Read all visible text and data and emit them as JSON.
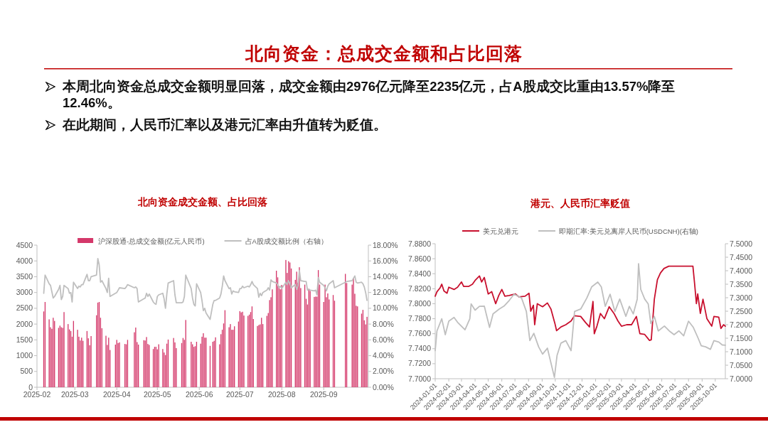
{
  "chart_data": [
    {
      "type": "other",
      "title": "北向资金：总成交金额和占比回落",
      "annotations": [
        "本周北向资金总成交金额明显回落，成交金额由2976亿元降至2235亿元，占A股成交比重由13.57%降至12.46%。",
        "在此期间，人民币汇率以及港元汇率由升值转为贬值。"
      ]
    },
    {
      "type": "bar",
      "title": "北向资金成交金额、占比回落",
      "legend": "top",
      "xlim": [
        "2025-02-01",
        "2025-10-04"
      ],
      "xticks": [
        "2025-02",
        "2025-03",
        "2025-04",
        "2025-05",
        "2025-06",
        "2025-07",
        "2025-08",
        "2025-09"
      ],
      "ylim": [
        0,
        4500
      ],
      "yticks": [
        0,
        500,
        1000,
        1500,
        2000,
        2500,
        3000,
        3500,
        4000,
        4500
      ],
      "y2lim": [
        0,
        18
      ],
      "y2ticks": [
        {
          "value": 0,
          "label": "0.00%"
        },
        {
          "value": 2,
          "label": "2.00%"
        },
        {
          "value": 4,
          "label": "4.00%"
        },
        {
          "value": 6,
          "label": "6.00%"
        },
        {
          "value": 8,
          "label": "8.00%"
        },
        {
          "value": 10,
          "label": "10.00%"
        },
        {
          "value": 12,
          "label": "12.00%"
        },
        {
          "value": 14,
          "label": "14.00%"
        },
        {
          "value": 16,
          "label": "16.00%"
        },
        {
          "value": 18,
          "label": "18.00%"
        }
      ],
      "series": [
        {
          "name": "沪深股通-总成交金额(亿元人民币)",
          "type": "bar",
          "color": "#d4386a",
          "x": [
            "2025-02-06",
            "2025-02-07",
            "2025-02-10",
            "2025-02-11",
            "2025-02-12",
            "2025-02-13",
            "2025-02-14",
            "2025-02-17",
            "2025-02-18",
            "2025-02-19",
            "2025-02-20",
            "2025-02-21",
            "2025-02-24",
            "2025-02-25",
            "2025-02-26",
            "2025-02-27",
            "2025-02-28",
            "2025-03-03",
            "2025-03-04",
            "2025-03-05",
            "2025-03-06",
            "2025-03-07",
            "2025-03-10",
            "2025-03-11",
            "2025-03-12",
            "2025-03-13",
            "2025-03-17",
            "2025-03-18",
            "2025-03-19",
            "2025-03-20",
            "2025-03-21",
            "2025-03-24",
            "2025-03-25",
            "2025-03-26",
            "2025-03-27",
            "2025-03-31",
            "2025-04-01",
            "2025-04-02",
            "2025-04-03",
            "2025-04-07",
            "2025-04-08",
            "2025-04-09",
            "2025-04-14",
            "2025-04-15",
            "2025-04-16",
            "2025-04-17",
            "2025-04-21",
            "2025-04-22",
            "2025-04-23",
            "2025-04-24",
            "2025-04-25",
            "2025-04-28",
            "2025-04-29",
            "2025-04-30",
            "2025-05-01",
            "2025-05-02",
            "2025-05-05",
            "2025-05-06",
            "2025-05-07",
            "2025-05-08",
            "2025-05-09",
            "2025-05-13",
            "2025-05-14",
            "2025-05-15",
            "2025-05-19",
            "2025-05-20",
            "2025-05-21",
            "2025-05-22",
            "2025-05-26",
            "2025-05-27",
            "2025-05-28",
            "2025-05-29",
            "2025-05-30",
            "2025-06-02",
            "2025-06-03",
            "2025-06-04",
            "2025-06-05",
            "2025-06-06",
            "2025-06-09",
            "2025-06-11",
            "2025-06-12",
            "2025-06-13",
            "2025-06-16",
            "2025-06-17",
            "2025-06-18",
            "2025-06-19",
            "2025-06-20",
            "2025-06-23",
            "2025-06-24",
            "2025-06-25",
            "2025-06-26",
            "2025-06-27",
            "2025-06-30",
            "2025-07-01",
            "2025-07-02",
            "2025-07-03",
            "2025-07-04",
            "2025-07-07",
            "2025-07-08",
            "2025-07-09",
            "2025-07-10",
            "2025-07-11",
            "2025-07-14",
            "2025-07-15",
            "2025-07-16",
            "2025-07-17",
            "2025-07-18",
            "2025-07-21",
            "2025-07-22",
            "2025-07-23",
            "2025-07-24",
            "2025-07-25",
            "2025-07-28",
            "2025-07-29",
            "2025-07-30",
            "2025-07-31",
            "2025-08-01",
            "2025-08-04",
            "2025-08-05",
            "2025-08-06",
            "2025-08-07",
            "2025-08-08",
            "2025-08-11",
            "2025-08-12",
            "2025-08-13",
            "2025-08-14",
            "2025-08-15",
            "2025-08-18",
            "2025-08-19",
            "2025-08-20",
            "2025-08-21",
            "2025-08-22",
            "2025-08-25",
            "2025-08-26",
            "2025-08-27",
            "2025-08-28",
            "2025-08-29",
            "2025-09-01",
            "2025-09-02",
            "2025-09-03",
            "2025-09-04",
            "2025-09-05",
            "2025-09-08",
            "2025-09-09",
            "2025-09-17",
            "2025-09-18",
            "2025-09-22",
            "2025-09-23",
            "2025-09-24",
            "2025-09-25",
            "2025-09-26",
            "2025-09-29",
            "2025-09-30",
            "2025-10-01",
            "2025-10-02",
            "2025-10-03"
          ],
          "values": [
            2400,
            2700,
            2150,
            1900,
            1850,
            2200,
            2100,
            1880,
            1950,
            1900,
            1880,
            2380,
            2000,
            1830,
            1780,
            1600,
            2100,
            1820,
            1600,
            1480,
            1570,
            1470,
            1780,
            1550,
            1330,
            1620,
            2280,
            2680,
            2700,
            2200,
            1870,
            1630,
            1340,
            1570,
            1180,
            1350,
            1500,
            1400,
            1420,
            1370,
            1360,
            1500,
            1740,
            1890,
            1430,
            1350,
            1490,
            1480,
            1590,
            1370,
            1340,
            1210,
            1280,
            1280,
            1200,
            1360,
            1210,
            1100,
            1020,
            1380,
            1510,
            1560,
            1420,
            1240,
            1400,
            1560,
            1500,
            2130,
            1440,
            1360,
            1280,
            1300,
            1440,
            1380,
            1600,
            1710,
            1570,
            1570,
            1310,
            1440,
            1470,
            1580,
            1360,
            1680,
            1820,
            2020,
            2440,
            1900,
            2000,
            1820,
            1820,
            1930,
            2080,
            2410,
            2370,
            2390,
            2270,
            2260,
            2300,
            2380,
            2560,
            2160,
            1940,
            1970,
            1990,
            2200,
            2000,
            2260,
            2350,
            2760,
            2850,
            3100,
            3690,
            3480,
            3200,
            3100,
            3240,
            4030,
            3620,
            3990,
            3950,
            3760,
            3400,
            3660,
            3310,
            3800,
            3140,
            3250,
            2800,
            2620,
            3120,
            3050,
            2860,
            2870,
            2870,
            3710,
            3250,
            2700,
            3250,
            2850,
            2970,
            2780,
            2920,
            2740,
            3590,
            3300,
            3250,
            3450,
            2960,
            2580,
            2560,
            2330,
            2450,
            2120,
            1990,
            2230
          ]
        },
        {
          "name": "占A股成交额比例（右轴）",
          "type": "line",
          "axis": "y2",
          "color": "#bfbfbf",
          "x": [
            "2025-02-06",
            "2025-02-07",
            "2025-02-10",
            "2025-02-11",
            "2025-02-12",
            "2025-02-13",
            "2025-02-14",
            "2025-02-17",
            "2025-02-18",
            "2025-02-19",
            "2025-02-20",
            "2025-02-21",
            "2025-02-24",
            "2025-02-25",
            "2025-02-26",
            "2025-02-27",
            "2025-02-28",
            "2025-03-03",
            "2025-03-04",
            "2025-03-05",
            "2025-03-06",
            "2025-03-07",
            "2025-03-10",
            "2025-03-11",
            "2025-03-12",
            "2025-03-13",
            "2025-03-17",
            "2025-03-18",
            "2025-03-19",
            "2025-03-20",
            "2025-03-21",
            "2025-03-24",
            "2025-03-25",
            "2025-03-26",
            "2025-03-27",
            "2025-03-31",
            "2025-04-01",
            "2025-04-02",
            "2025-04-03",
            "2025-04-07",
            "2025-04-08",
            "2025-04-09",
            "2025-04-14",
            "2025-04-15",
            "2025-04-16",
            "2025-04-17",
            "2025-04-21",
            "2025-04-22",
            "2025-04-23",
            "2025-04-24",
            "2025-04-25",
            "2025-04-28",
            "2025-04-29",
            "2025-04-30",
            "2025-05-01",
            "2025-05-02",
            "2025-05-05",
            "2025-05-06",
            "2025-05-07",
            "2025-05-08",
            "2025-05-09",
            "2025-05-13",
            "2025-05-14",
            "2025-05-15",
            "2025-05-19",
            "2025-05-20",
            "2025-05-21",
            "2025-05-22",
            "2025-05-26",
            "2025-05-27",
            "2025-05-28",
            "2025-05-29",
            "2025-05-30",
            "2025-06-02",
            "2025-06-03",
            "2025-06-04",
            "2025-06-05",
            "2025-06-06",
            "2025-06-09",
            "2025-06-11",
            "2025-06-12",
            "2025-06-13",
            "2025-06-16",
            "2025-06-17",
            "2025-06-18",
            "2025-06-19",
            "2025-06-20",
            "2025-06-23",
            "2025-06-24",
            "2025-06-25",
            "2025-06-26",
            "2025-06-27",
            "2025-06-30",
            "2025-07-01",
            "2025-07-02",
            "2025-07-03",
            "2025-07-04",
            "2025-07-07",
            "2025-07-08",
            "2025-07-09",
            "2025-07-10",
            "2025-07-11",
            "2025-07-14",
            "2025-07-15",
            "2025-07-16",
            "2025-07-17",
            "2025-07-18",
            "2025-07-21",
            "2025-07-22",
            "2025-07-23",
            "2025-07-24",
            "2025-07-25",
            "2025-07-28",
            "2025-07-29",
            "2025-07-30",
            "2025-07-31",
            "2025-08-01",
            "2025-08-04",
            "2025-08-05",
            "2025-08-06",
            "2025-08-07",
            "2025-08-08",
            "2025-08-11",
            "2025-08-12",
            "2025-08-13",
            "2025-08-14",
            "2025-08-15",
            "2025-08-18",
            "2025-08-19",
            "2025-08-20",
            "2025-08-21",
            "2025-08-22",
            "2025-08-25",
            "2025-08-26",
            "2025-08-27",
            "2025-08-28",
            "2025-08-29",
            "2025-09-01",
            "2025-09-02",
            "2025-09-03",
            "2025-09-04",
            "2025-09-05",
            "2025-09-08",
            "2025-09-09",
            "2025-09-17",
            "2025-09-18",
            "2025-09-22",
            "2025-09-23",
            "2025-09-24",
            "2025-09-25",
            "2025-09-26",
            "2025-09-29",
            "2025-09-30",
            "2025-10-01",
            "2025-10-02",
            "2025-10-03"
          ],
          "values": [
            11.9,
            14.2,
            13.1,
            12.9,
            12.1,
            11.3,
            11.5,
            12.4,
            12.9,
            11.1,
            11.5,
            12.9,
            12.5,
            11.9,
            12.0,
            10.8,
            13.3,
            12.5,
            12.8,
            12.7,
            13.0,
            13.0,
            14.3,
            13.5,
            13.5,
            14.0,
            14.2,
            16.3,
            15.5,
            13.3,
            13.5,
            12.5,
            12.0,
            13.8,
            11.5,
            11.9,
            12.0,
            12.3,
            12.6,
            12.5,
            12.7,
            13.0,
            12.6,
            12.7,
            12.5,
            10.8,
            11.2,
            11.3,
            11.9,
            11.5,
            11.8,
            10.8,
            10.6,
            10.5,
            11.5,
            11.7,
            11.9,
            11.2,
            10.0,
            11.8,
            13.2,
            13.5,
            11.7,
            10.7,
            10.7,
            10.8,
            11.5,
            14.2,
            12.5,
            11.3,
            10.5,
            10.3,
            13.1,
            12.0,
            11.0,
            9.7,
            10.0,
            9.4,
            8.6,
            10.5,
            11.0,
            11.0,
            11.3,
            11.8,
            12.8,
            14.1,
            13.5,
            12.5,
            12.6,
            11.8,
            12.2,
            12.1,
            12.0,
            12.5,
            12.5,
            12.8,
            12.6,
            12.8,
            12.7,
            13.0,
            13.4,
            13.0,
            12.5,
            11.4,
            11.9,
            11.6,
            12.0,
            12.3,
            12.6,
            12.3,
            13.6,
            13.4,
            13.2,
            13.0,
            12.6,
            12.8,
            12.5,
            13.3,
            13.0,
            13.5,
            13.2,
            12.6,
            13.0,
            12.4,
            12.9,
            14.8,
            13.5,
            13.4,
            13.4,
            12.3,
            12.4,
            12.3,
            12.2,
            12.3,
            11.7,
            13.9,
            13.3,
            12.9,
            12.6,
            12.2,
            12.8,
            13.1,
            13.5,
            12.6,
            13.3,
            13.4,
            13.5,
            13.8,
            14.1,
            13.3,
            13.2,
            13.3,
            13.1,
            12.7,
            12.0,
            11.0
          ]
        }
      ]
    },
    {
      "type": "line",
      "title": "港元、人民币汇率贬值",
      "legend": "top",
      "xlim": [
        "2024-01-01",
        "2025-10-24"
      ],
      "xticks": [
        "2024-01-01",
        "2024-02-01",
        "2024-03-01",
        "2024-04-01",
        "2024-05-01",
        "2024-06-01",
        "2024-07-01",
        "2024-08-01",
        "2024-09-01",
        "2024-10-01",
        "2024-11-01",
        "2024-12-01",
        "2025-01-01",
        "2025-02-01",
        "2025-03-01",
        "2025-04-01",
        "2025-05-01",
        "2025-06-01",
        "2025-07-01",
        "2025-08-01",
        "2025-09-01",
        "2025-10-01"
      ],
      "ylim": [
        7.7,
        7.88
      ],
      "yticks": [
        {
          "value": 7.7,
          "label": "7.7000"
        },
        {
          "value": 7.72,
          "label": "7.7200"
        },
        {
          "value": 7.74,
          "label": "7.7400"
        },
        {
          "value": 7.76,
          "label": "7.7600"
        },
        {
          "value": 7.78,
          "label": "7.7800"
        },
        {
          "value": 7.8,
          "label": "7.8000"
        },
        {
          "value": 7.82,
          "label": "7.8200"
        },
        {
          "value": 7.84,
          "label": "7.8400"
        },
        {
          "value": 7.86,
          "label": "7.8600"
        },
        {
          "value": 7.88,
          "label": "7.8800"
        }
      ],
      "y2lim": [
        7.0,
        7.5
      ],
      "y2ticks": [
        {
          "value": 7.0,
          "label": "7.0000"
        },
        {
          "value": 7.05,
          "label": "7.0500"
        },
        {
          "value": 7.1,
          "label": "7.1000"
        },
        {
          "value": 7.15,
          "label": "7.1500"
        },
        {
          "value": 7.2,
          "label": "7.2000"
        },
        {
          "value": 7.25,
          "label": "7.2500"
        },
        {
          "value": 7.3,
          "label": "7.3000"
        },
        {
          "value": 7.35,
          "label": "7.3500"
        },
        {
          "value": 7.4,
          "label": "7.4000"
        },
        {
          "value": 7.45,
          "label": "7.4500"
        },
        {
          "value": 7.5,
          "label": "7.5000"
        }
      ],
      "series": [
        {
          "name": "美元兑港元",
          "color": "#c8102e",
          "x": [
            "2024-01-01",
            "2024-01-05",
            "2024-01-12",
            "2024-01-16",
            "2024-01-21",
            "2024-01-28",
            "2024-02-01",
            "2024-02-13",
            "2024-02-21",
            "2024-03-01",
            "2024-03-06",
            "2024-03-17",
            "2024-03-26",
            "2024-04-01",
            "2024-04-11",
            "2024-04-16",
            "2024-04-22",
            "2024-05-01",
            "2024-05-09",
            "2024-05-18",
            "2024-05-25",
            "2024-06-01",
            "2024-06-08",
            "2024-06-18",
            "2024-07-02",
            "2024-07-10",
            "2024-07-24",
            "2024-08-02",
            "2024-08-06",
            "2024-08-12",
            "2024-08-15",
            "2024-08-21",
            "2024-09-02",
            "2024-09-13",
            "2024-09-21",
            "2024-09-30",
            "2024-10-04",
            "2024-10-14",
            "2024-10-25",
            "2024-11-06",
            "2024-11-14",
            "2024-11-28",
            "2024-12-09",
            "2024-12-18",
            "2024-12-26",
            "2024-12-29",
            "2025-01-04",
            "2025-01-12",
            "2025-01-21",
            "2025-02-01",
            "2025-02-12",
            "2025-02-21",
            "2025-03-01",
            "2025-03-13",
            "2025-03-24",
            "2025-04-04",
            "2025-04-12",
            "2025-04-23",
            "2025-05-04",
            "2025-05-08",
            "2025-05-15",
            "2025-05-22",
            "2025-05-29",
            "2025-06-06",
            "2025-06-17",
            "2025-07-10",
            "2025-08-01",
            "2025-08-11",
            "2025-08-15",
            "2025-08-19",
            "2025-08-22",
            "2025-08-28",
            "2025-09-03",
            "2025-09-12",
            "2025-09-23",
            "2025-09-28",
            "2025-10-09",
            "2025-10-14",
            "2025-10-20",
            "2025-10-24"
          ],
          "values": [
            7.81,
            7.816,
            7.821,
            7.826,
            7.817,
            7.814,
            7.822,
            7.819,
            7.822,
            7.829,
            7.823,
            7.823,
            7.826,
            7.831,
            7.837,
            7.829,
            7.835,
            7.813,
            7.816,
            7.8,
            7.811,
            7.819,
            7.81,
            7.811,
            7.813,
            7.809,
            7.81,
            7.814,
            7.79,
            7.798,
            7.772,
            7.8,
            7.796,
            7.801,
            7.793,
            7.774,
            7.764,
            7.769,
            7.772,
            7.777,
            7.784,
            7.783,
            7.775,
            7.769,
            7.803,
            7.76,
            7.77,
            7.787,
            7.78,
            7.796,
            7.787,
            7.777,
            7.77,
            7.772,
            7.772,
            7.783,
            7.76,
            7.759,
            7.751,
            7.752,
            7.806,
            7.832,
            7.841,
            7.847,
            7.85,
            7.85,
            7.85,
            7.85,
            7.826,
            7.8,
            7.813,
            7.787,
            7.806,
            7.78,
            7.77,
            7.783,
            7.782,
            7.767,
            7.772,
            7.77
          ]
        },
        {
          "name": "即期汇率:美元兑离岸人民币(USDCNH)(右轴)",
          "axis": "y2",
          "color": "#bfbfbf",
          "x": [
            "2024-01-01",
            "2024-01-05",
            "2024-01-16",
            "2024-01-24",
            "2024-02-01",
            "2024-02-13",
            "2024-02-21",
            "2024-03-09",
            "2024-03-20",
            "2024-03-23",
            "2024-04-01",
            "2024-04-11",
            "2024-04-22",
            "2024-05-04",
            "2024-05-12",
            "2024-05-26",
            "2024-06-06",
            "2024-06-18",
            "2024-06-29",
            "2024-07-16",
            "2024-07-27",
            "2024-08-04",
            "2024-08-13",
            "2024-08-24",
            "2024-09-02",
            "2024-09-13",
            "2024-09-21",
            "2024-09-29",
            "2024-10-05",
            "2024-10-14",
            "2024-10-25",
            "2024-11-06",
            "2024-11-14",
            "2024-11-28",
            "2024-12-12",
            "2024-12-23",
            "2025-01-06",
            "2025-01-14",
            "2025-01-23",
            "2025-02-03",
            "2025-02-14",
            "2025-02-25",
            "2025-03-11",
            "2025-03-19",
            "2025-03-28",
            "2025-04-06",
            "2025-04-09",
            "2025-04-14",
            "2025-04-23",
            "2025-05-01",
            "2025-05-07",
            "2025-05-15",
            "2025-05-24",
            "2025-06-07",
            "2025-06-18",
            "2025-06-29",
            "2025-07-10",
            "2025-07-21",
            "2025-08-01",
            "2025-08-12",
            "2025-08-23",
            "2025-08-30",
            "2025-09-09",
            "2025-09-20",
            "2025-09-28",
            "2025-10-09",
            "2025-10-17",
            "2025-10-24"
          ],
          "values": [
            7.104,
            7.177,
            7.222,
            7.163,
            7.213,
            7.227,
            7.209,
            7.181,
            7.222,
            7.277,
            7.254,
            7.268,
            7.269,
            7.19,
            7.24,
            7.258,
            7.269,
            7.29,
            7.313,
            7.299,
            7.249,
            7.141,
            7.168,
            7.118,
            7.091,
            7.113,
            7.059,
            7.005,
            7.086,
            7.132,
            7.141,
            7.104,
            7.249,
            7.258,
            7.299,
            7.34,
            7.358,
            7.34,
            7.268,
            7.313,
            7.249,
            7.295,
            7.231,
            7.268,
            7.24,
            7.295,
            7.426,
            7.331,
            7.295,
            7.277,
            7.204,
            7.231,
            7.177,
            7.195,
            7.177,
            7.163,
            7.177,
            7.159,
            7.213,
            7.19,
            7.15,
            7.122,
            7.118,
            7.109,
            7.141,
            7.136,
            7.125,
            7.124
          ]
        }
      ]
    }
  ]
}
